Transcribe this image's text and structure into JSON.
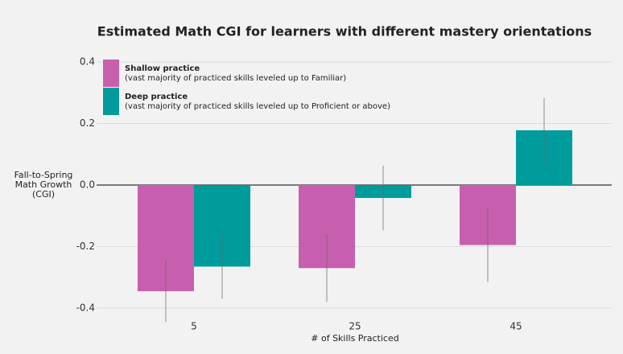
{
  "chart_data": {
    "type": "bar",
    "title": "Estimated Math CGI for learners with different mastery orientations",
    "x_label": "# of Skills Practiced",
    "y_label": [
      "Fall-to-Spring",
      "Math Growth",
      "(CGI)"
    ],
    "categories": [
      "5",
      "25",
      "45"
    ],
    "series": [
      {
        "name": "Shallow practice",
        "description": "(vast majority of practiced skills leveled up to Familiar)",
        "color": "#c85fae",
        "values": [
          -0.345,
          -0.27,
          -0.195
        ],
        "errors": [
          0.1,
          0.11,
          0.12
        ]
      },
      {
        "name": "Deep practice",
        "description": "(vast majority of practiced skills leveled up to Proficient or above)",
        "color": "#009c9c",
        "values": [
          -0.265,
          -0.042,
          0.178
        ],
        "errors": [
          0.105,
          0.105,
          0.105
        ]
      }
    ],
    "ylim": [
      -0.44,
      0.44
    ],
    "yticks": [
      -0.4,
      -0.2,
      {
        "value": 0,
        "label": "0.0"
      },
      0.2,
      0.4
    ],
    "grid": true,
    "legend": "upper-left"
  }
}
